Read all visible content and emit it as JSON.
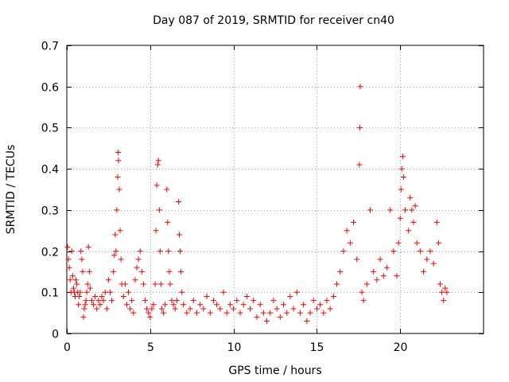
{
  "chart_data": {
    "type": "scatter",
    "title": "Day 087 of 2019, SRMTID for receiver cn40",
    "xlabel": "GPS time / hours",
    "ylabel": "SRMTID / TECUs",
    "xlim": [
      0,
      25
    ],
    "ylim": [
      0,
      0.7
    ],
    "xticks": [
      0,
      5,
      10,
      15,
      20
    ],
    "yticks": [
      0,
      0.1,
      0.2,
      0.3,
      0.4,
      0.5,
      0.6,
      0.7
    ],
    "xtick_labels": [
      "0",
      "5",
      "10",
      "15",
      "20"
    ],
    "ytick_labels": [
      "0",
      "0.1",
      "0.2",
      "0.3",
      "0.4",
      "0.5",
      "0.6",
      "0.7"
    ],
    "grid": true,
    "marker": "+",
    "color": "#ff0000",
    "series": [
      {
        "name": "SRMTID",
        "points": [
          [
            0.05,
            0.21
          ],
          [
            0.1,
            0.18
          ],
          [
            0.15,
            0.16
          ],
          [
            0.2,
            0.13
          ],
          [
            0.25,
            0.1
          ],
          [
            0.3,
            0.2
          ],
          [
            0.35,
            0.14
          ],
          [
            0.4,
            0.11
          ],
          [
            0.45,
            0.1
          ],
          [
            0.5,
            0.09
          ],
          [
            0.55,
            0.13
          ],
          [
            0.6,
            0.12
          ],
          [
            0.65,
            0.1
          ],
          [
            0.7,
            0.07
          ],
          [
            0.75,
            0.09
          ],
          [
            0.8,
            0.1
          ],
          [
            0.85,
            0.2
          ],
          [
            0.9,
            0.18
          ],
          [
            0.95,
            0.15
          ],
          [
            1.0,
            0.04
          ],
          [
            1.05,
            0.06
          ],
          [
            1.1,
            0.07
          ],
          [
            1.15,
            0.08
          ],
          [
            1.2,
            0.1
          ],
          [
            1.25,
            0.12
          ],
          [
            1.3,
            0.21
          ],
          [
            1.35,
            0.15
          ],
          [
            1.4,
            0.11
          ],
          [
            1.5,
            0.08
          ],
          [
            1.6,
            0.07
          ],
          [
            1.7,
            0.09
          ],
          [
            1.8,
            0.06
          ],
          [
            1.9,
            0.08
          ],
          [
            2.0,
            0.07
          ],
          [
            2.1,
            0.09
          ],
          [
            2.2,
            0.08
          ],
          [
            2.3,
            0.1
          ],
          [
            2.4,
            0.06
          ],
          [
            2.5,
            0.13
          ],
          [
            2.6,
            0.1
          ],
          [
            2.7,
            0.08
          ],
          [
            2.8,
            0.15
          ],
          [
            2.85,
            0.19
          ],
          [
            2.9,
            0.24
          ],
          [
            2.95,
            0.2
          ],
          [
            3.0,
            0.3
          ],
          [
            3.05,
            0.38
          ],
          [
            3.08,
            0.44
          ],
          [
            3.1,
            0.42
          ],
          [
            3.15,
            0.35
          ],
          [
            3.2,
            0.25
          ],
          [
            3.25,
            0.18
          ],
          [
            3.3,
            0.12
          ],
          [
            3.4,
            0.09
          ],
          [
            3.5,
            0.12
          ],
          [
            3.6,
            0.07
          ],
          [
            3.7,
            0.1
          ],
          [
            3.8,
            0.06
          ],
          [
            3.9,
            0.08
          ],
          [
            4.0,
            0.05
          ],
          [
            4.1,
            0.13
          ],
          [
            4.2,
            0.16
          ],
          [
            4.3,
            0.18
          ],
          [
            4.4,
            0.2
          ],
          [
            4.5,
            0.15
          ],
          [
            4.6,
            0.12
          ],
          [
            4.7,
            0.08
          ],
          [
            4.8,
            0.06
          ],
          [
            4.9,
            0.05
          ],
          [
            5.0,
            0.04
          ],
          [
            5.1,
            0.06
          ],
          [
            5.2,
            0.07
          ],
          [
            5.3,
            0.12
          ],
          [
            5.35,
            0.25
          ],
          [
            5.4,
            0.36
          ],
          [
            5.45,
            0.41
          ],
          [
            5.5,
            0.42
          ],
          [
            5.55,
            0.3
          ],
          [
            5.6,
            0.2
          ],
          [
            5.65,
            0.12
          ],
          [
            5.7,
            0.06
          ],
          [
            5.8,
            0.05
          ],
          [
            5.9,
            0.07
          ],
          [
            6.0,
            0.35
          ],
          [
            6.05,
            0.27
          ],
          [
            6.1,
            0.2
          ],
          [
            6.15,
            0.15
          ],
          [
            6.2,
            0.12
          ],
          [
            6.3,
            0.08
          ],
          [
            6.4,
            0.07
          ],
          [
            6.5,
            0.06
          ],
          [
            6.6,
            0.08
          ],
          [
            6.7,
            0.32
          ],
          [
            6.75,
            0.24
          ],
          [
            6.8,
            0.2
          ],
          [
            6.85,
            0.15
          ],
          [
            6.9,
            0.1
          ],
          [
            7.0,
            0.07
          ],
          [
            7.2,
            0.05
          ],
          [
            7.4,
            0.06
          ],
          [
            7.6,
            0.08
          ],
          [
            7.8,
            0.05
          ],
          [
            8.0,
            0.07
          ],
          [
            8.2,
            0.06
          ],
          [
            8.4,
            0.09
          ],
          [
            8.6,
            0.05
          ],
          [
            8.8,
            0.08
          ],
          [
            9.0,
            0.07
          ],
          [
            9.2,
            0.06
          ],
          [
            9.4,
            0.1
          ],
          [
            9.6,
            0.05
          ],
          [
            9.8,
            0.07
          ],
          [
            10.0,
            0.06
          ],
          [
            10.2,
            0.08
          ],
          [
            10.4,
            0.05
          ],
          [
            10.6,
            0.07
          ],
          [
            10.8,
            0.09
          ],
          [
            11.0,
            0.06
          ],
          [
            11.2,
            0.08
          ],
          [
            11.4,
            0.04
          ],
          [
            11.6,
            0.07
          ],
          [
            11.8,
            0.05
          ],
          [
            12.0,
            0.03
          ],
          [
            12.2,
            0.05
          ],
          [
            12.4,
            0.08
          ],
          [
            12.6,
            0.06
          ],
          [
            12.8,
            0.04
          ],
          [
            13.0,
            0.07
          ],
          [
            13.2,
            0.05
          ],
          [
            13.4,
            0.09
          ],
          [
            13.6,
            0.06
          ],
          [
            13.8,
            0.1
          ],
          [
            14.0,
            0.05
          ],
          [
            14.2,
            0.07
          ],
          [
            14.4,
            0.03
          ],
          [
            14.6,
            0.05
          ],
          [
            14.8,
            0.08
          ],
          [
            15.0,
            0.06
          ],
          [
            15.2,
            0.07
          ],
          [
            15.4,
            0.05
          ],
          [
            15.6,
            0.08
          ],
          [
            15.8,
            0.06
          ],
          [
            16.0,
            0.09
          ],
          [
            16.2,
            0.12
          ],
          [
            16.4,
            0.15
          ],
          [
            16.6,
            0.2
          ],
          [
            16.8,
            0.25
          ],
          [
            17.0,
            0.22
          ],
          [
            17.2,
            0.27
          ],
          [
            17.4,
            0.18
          ],
          [
            17.55,
            0.41
          ],
          [
            17.58,
            0.5
          ],
          [
            17.6,
            0.6
          ],
          [
            17.7,
            0.1
          ],
          [
            17.8,
            0.08
          ],
          [
            18.0,
            0.12
          ],
          [
            18.2,
            0.3
          ],
          [
            18.4,
            0.15
          ],
          [
            18.6,
            0.13
          ],
          [
            18.8,
            0.18
          ],
          [
            19.0,
            0.14
          ],
          [
            19.2,
            0.16
          ],
          [
            19.4,
            0.3
          ],
          [
            19.6,
            0.2
          ],
          [
            19.8,
            0.14
          ],
          [
            19.9,
            0.22
          ],
          [
            20.0,
            0.28
          ],
          [
            20.05,
            0.35
          ],
          [
            20.1,
            0.4
          ],
          [
            20.15,
            0.43
          ],
          [
            20.2,
            0.38
          ],
          [
            20.3,
            0.3
          ],
          [
            20.5,
            0.25
          ],
          [
            20.6,
            0.33
          ],
          [
            20.7,
            0.3
          ],
          [
            20.8,
            0.27
          ],
          [
            20.9,
            0.31
          ],
          [
            21.0,
            0.22
          ],
          [
            21.2,
            0.2
          ],
          [
            21.4,
            0.15
          ],
          [
            21.6,
            0.18
          ],
          [
            21.8,
            0.2
          ],
          [
            22.0,
            0.17
          ],
          [
            22.2,
            0.27
          ],
          [
            22.3,
            0.22
          ],
          [
            22.4,
            0.12
          ],
          [
            22.5,
            0.1
          ],
          [
            22.6,
            0.08
          ],
          [
            22.7,
            0.11
          ],
          [
            22.8,
            0.1
          ]
        ]
      }
    ]
  }
}
